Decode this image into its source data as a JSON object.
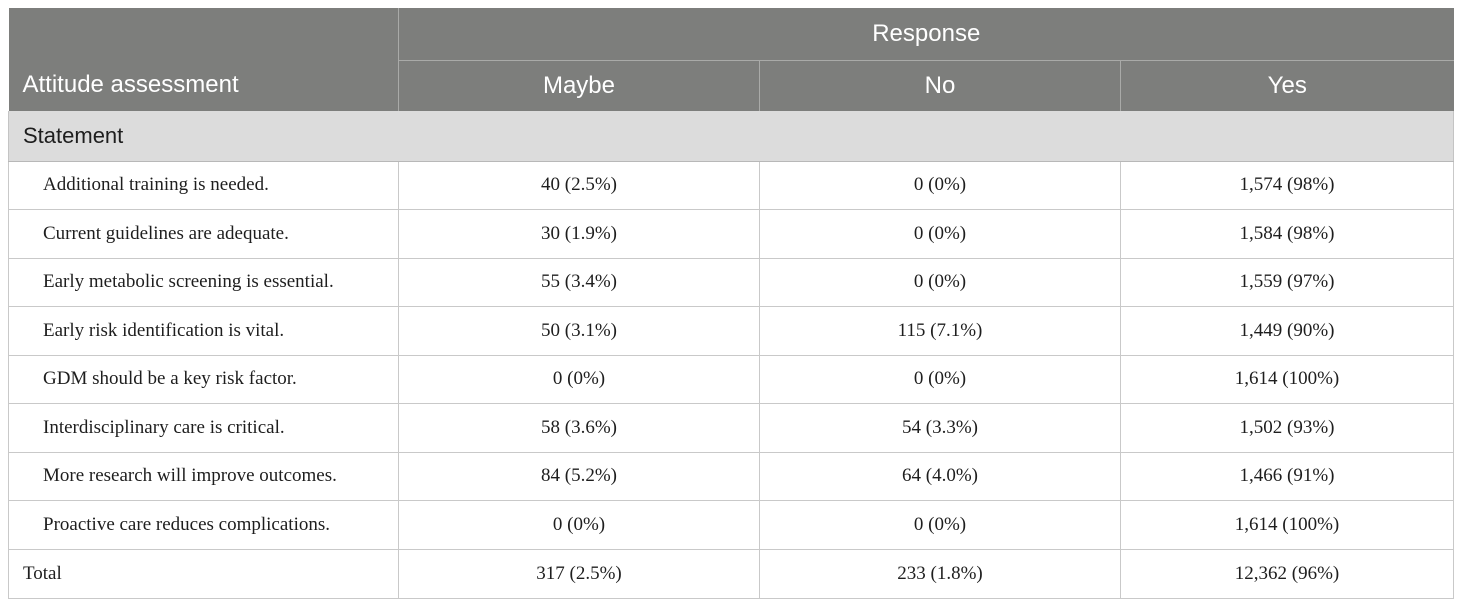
{
  "table": {
    "header": {
      "row_label": "Attitude assessment",
      "group_label": "Response",
      "columns": [
        "Maybe",
        "No",
        "Yes"
      ]
    },
    "section_label": "Statement",
    "rows": [
      {
        "statement": "Additional training is needed.",
        "maybe": "40 (2.5%)",
        "no": "0 (0%)",
        "yes": "1,574 (98%)"
      },
      {
        "statement": "Current guidelines are adequate.",
        "maybe": "30 (1.9%)",
        "no": "0 (0%)",
        "yes": "1,584 (98%)"
      },
      {
        "statement": "Early metabolic screening is essential.",
        "maybe": "55 (3.4%)",
        "no": "0 (0%)",
        "yes": "1,559 (97%)"
      },
      {
        "statement": "Early risk identification is vital.",
        "maybe": "50 (3.1%)",
        "no": "115 (7.1%)",
        "yes": "1,449 (90%)"
      },
      {
        "statement": "GDM should be a key risk factor.",
        "maybe": "0 (0%)",
        "no": "0 (0%)",
        "yes": "1,614 (100%)"
      },
      {
        "statement": "Interdisciplinary care is critical.",
        "maybe": "58 (3.6%)",
        "no": "54 (3.3%)",
        "yes": "1,502 (93%)"
      },
      {
        "statement": "More research will improve outcomes.",
        "maybe": "84 (5.2%)",
        "no": "64 (4.0%)",
        "yes": "1,466 (91%)"
      },
      {
        "statement": "Proactive care reduces complications.",
        "maybe": "0 (0%)",
        "no": "0 (0%)",
        "yes": "1,614 (100%)"
      }
    ],
    "total": {
      "label": "Total",
      "maybe": "317 (2.5%)",
      "no": "233 (1.8%)",
      "yes": "12,362 (96%)"
    }
  },
  "colors": {
    "header_bg": "#7d7e7c",
    "section_bg": "#dcdcdc",
    "border": "#c9c9c9"
  }
}
